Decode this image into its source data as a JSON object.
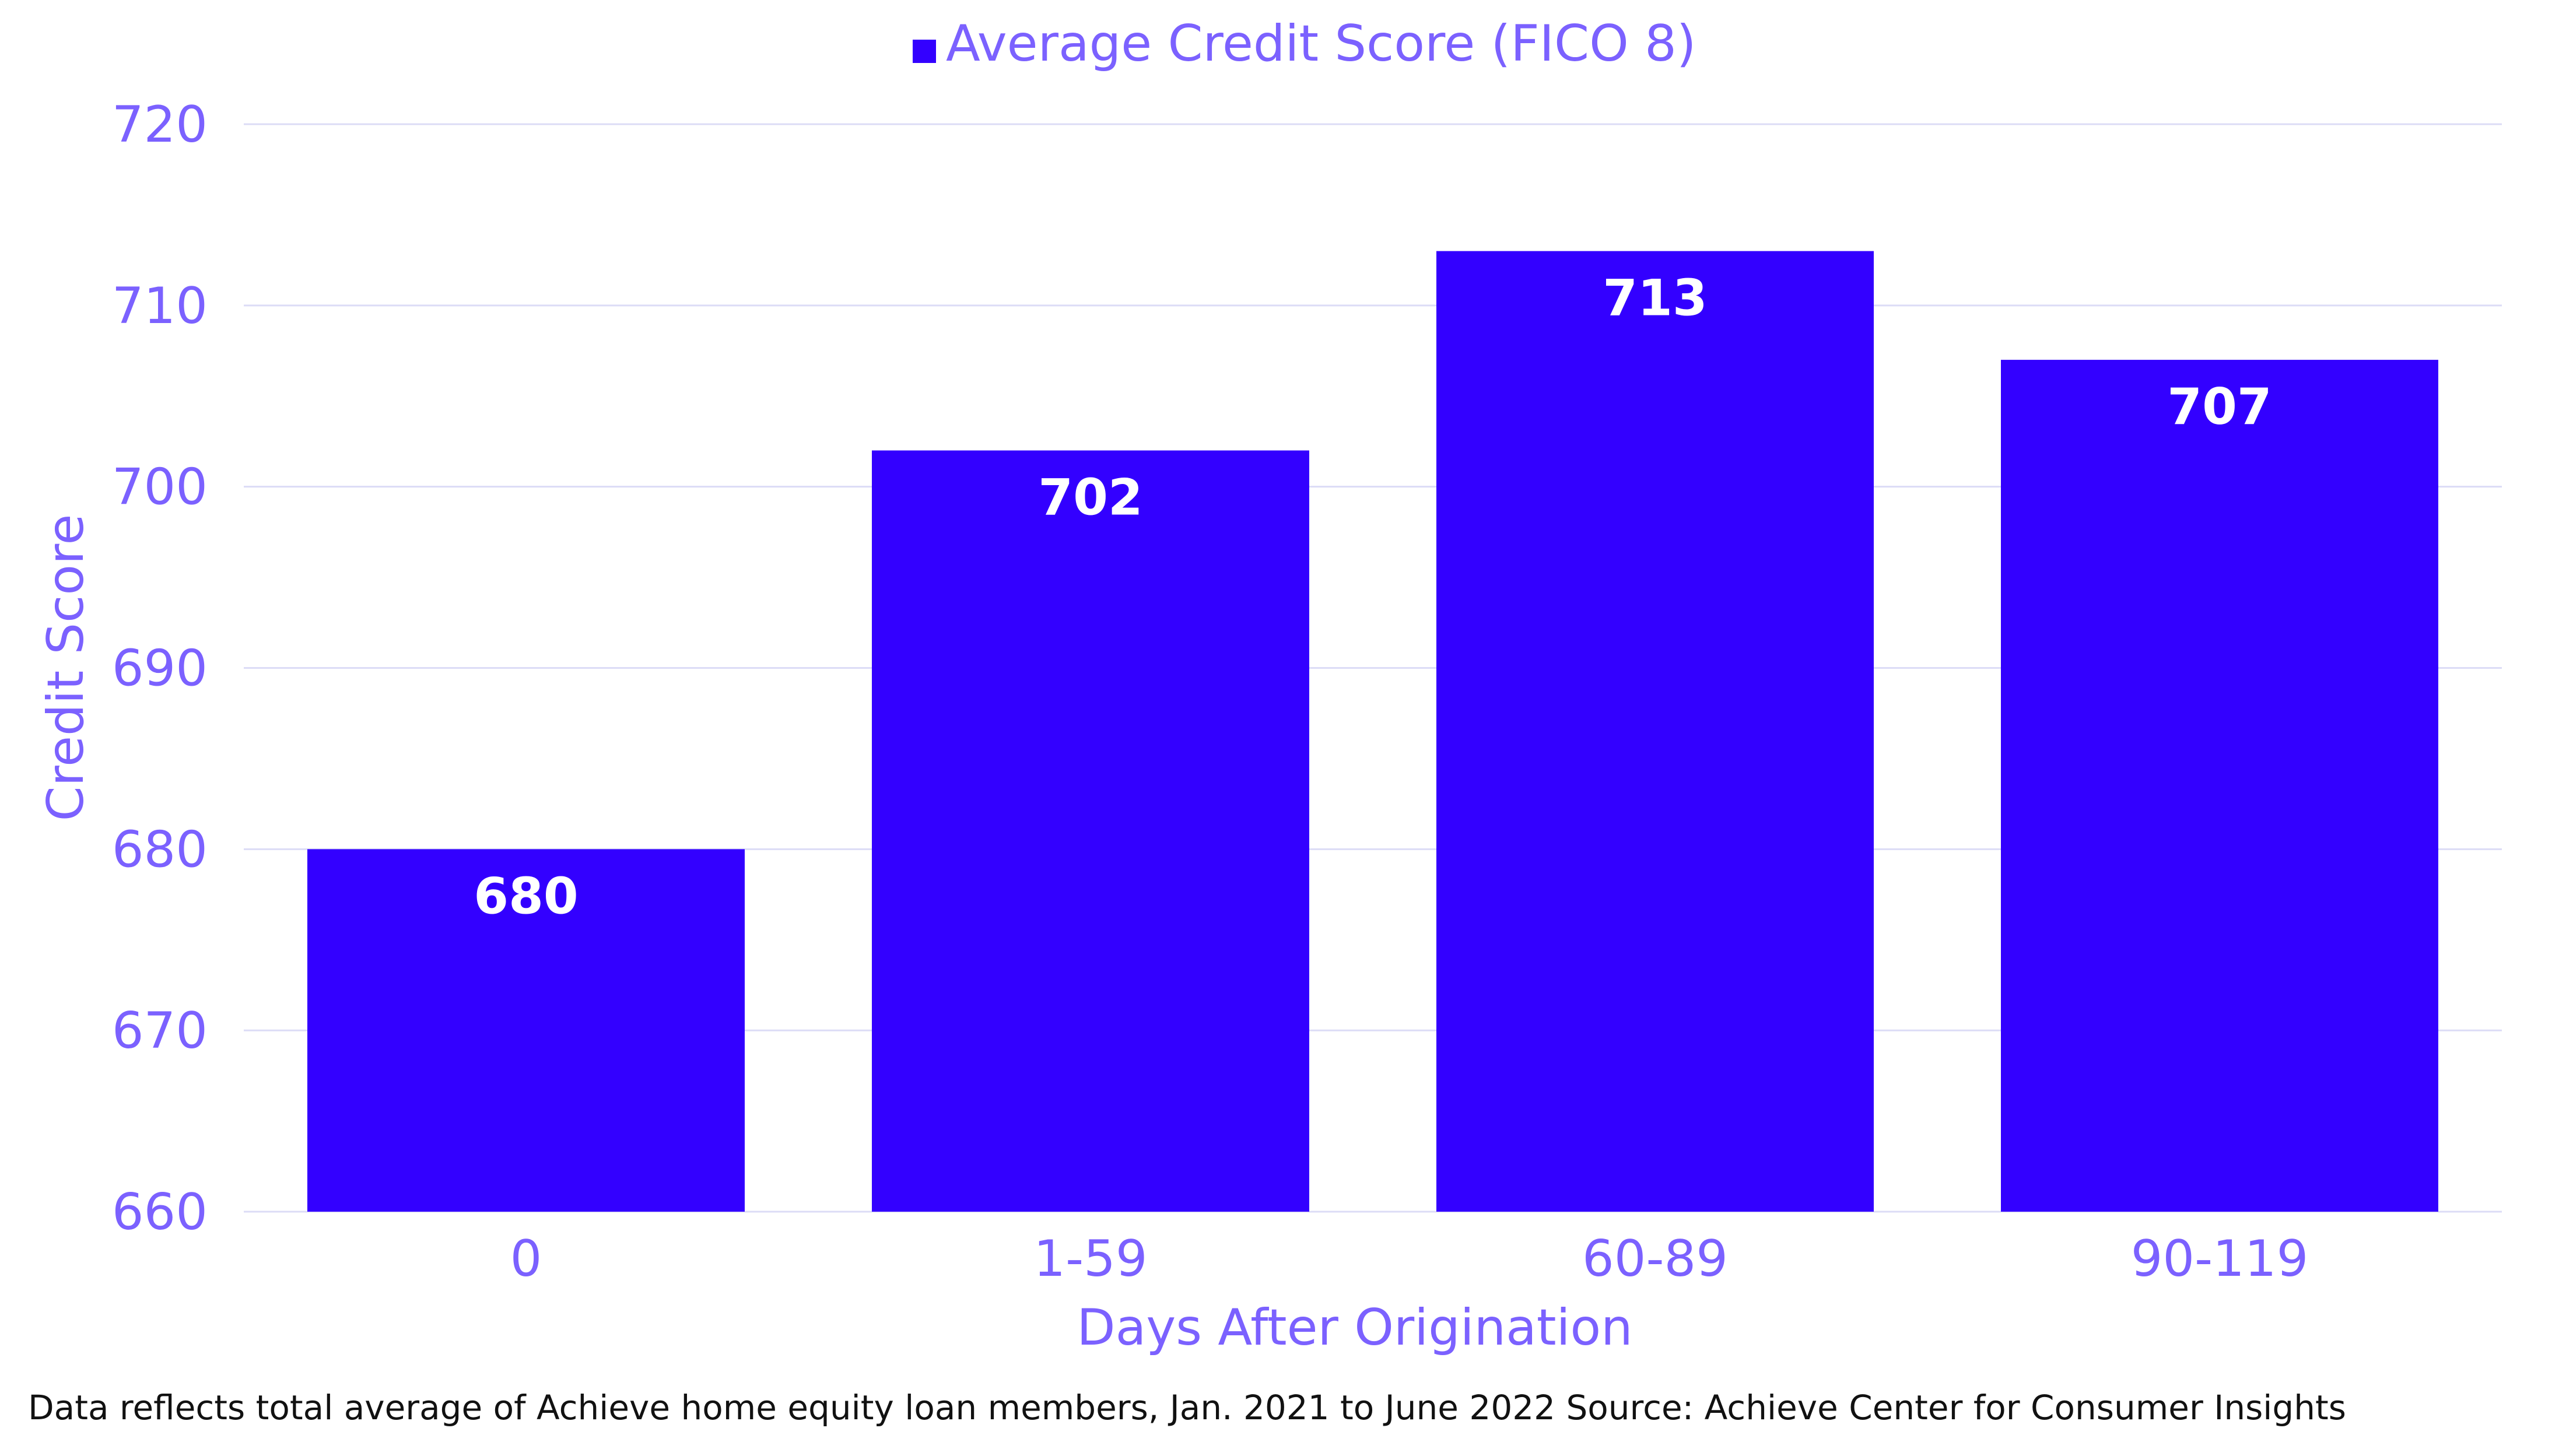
{
  "chart_data": {
    "type": "bar",
    "categories": [
      "0",
      "1-59",
      "60-89",
      "90-119"
    ],
    "series": [
      {
        "name": "Average Credit Score (FICO 8)",
        "values": [
          680,
          702,
          713,
          707
        ]
      }
    ],
    "data_labels": [
      "680",
      "702",
      "713",
      "707"
    ],
    "xlabel": "Days After Origination",
    "ylabel": "Credit Score",
    "ylim": [
      660,
      720
    ],
    "yticks": [
      660,
      670,
      680,
      690,
      700,
      710,
      720
    ],
    "ytick_labels": [
      "660",
      "670",
      "680",
      "690",
      "700",
      "710",
      "720"
    ],
    "grid": true,
    "legend_position": "top-center",
    "colors": {
      "bar": "#3300ff",
      "text": "#7b61ff",
      "grid": "#dcdcf6"
    }
  },
  "footnote": "Data reflects total average of Achieve home equity loan members, Jan. 2021 to June 2022 Source: Achieve Center for Consumer Insights"
}
